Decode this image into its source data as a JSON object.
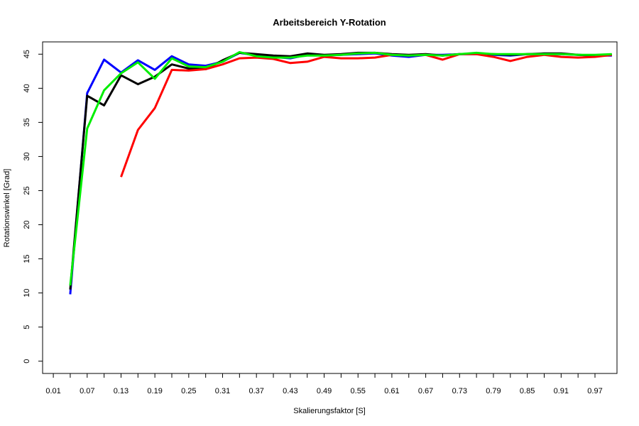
{
  "chart_data": {
    "type": "line",
    "title": "Arbeitsbereich Y-Rotation",
    "xlabel": "Skalierungsfaktor [S]",
    "ylabel": "Rotationswinkel [Grad]",
    "xlim": [
      -0.009,
      1.009
    ],
    "ylim": [
      -1.8,
      46.8
    ],
    "x_ticks": [
      0.01,
      0.04,
      0.07,
      0.1,
      0.13,
      0.16,
      0.19,
      0.22,
      0.25,
      0.28,
      0.31,
      0.34,
      0.37,
      0.4,
      0.43,
      0.46,
      0.49,
      0.52,
      0.55,
      0.58,
      0.61,
      0.64,
      0.67,
      0.7,
      0.73,
      0.76,
      0.79,
      0.82,
      0.85,
      0.88,
      0.91,
      0.94,
      0.97
    ],
    "x_tick_labels": [
      "0.01",
      "",
      "0.07",
      "",
      "0.13",
      "",
      "0.19",
      "",
      "0.25",
      "",
      "0.31",
      "",
      "0.37",
      "",
      "0.43",
      "",
      "0.49",
      "",
      "0.55",
      "",
      "0.61",
      "",
      "0.67",
      "",
      "0.73",
      "",
      "0.79",
      "",
      "0.85",
      "",
      "0.91",
      "",
      "0.97"
    ],
    "y_ticks": [
      0,
      5,
      10,
      15,
      20,
      25,
      30,
      35,
      40,
      45
    ],
    "y_tick_labels": [
      "0",
      "5",
      "10",
      "15",
      "20",
      "25",
      "30",
      "35",
      "40",
      "45"
    ],
    "grid": false,
    "series": [
      {
        "color": "#0000ff",
        "x": [
          0.04,
          0.07,
          0.1,
          0.13,
          0.16,
          0.19,
          0.22,
          0.25,
          0.28,
          0.31,
          0.34,
          0.37,
          0.4,
          0.43,
          0.46,
          0.49,
          0.52,
          0.55,
          0.58,
          0.61,
          0.64,
          0.67,
          0.7,
          0.73,
          0.76,
          0.79,
          0.82,
          0.85,
          0.88,
          0.91,
          0.94,
          0.97,
          1.0
        ],
        "y": [
          9.8,
          39.3,
          44.2,
          42.3,
          44.1,
          42.7,
          44.7,
          43.5,
          43.3,
          43.9,
          45.2,
          44.8,
          44.6,
          44.4,
          44.9,
          44.8,
          44.9,
          45.0,
          45.1,
          44.8,
          44.6,
          44.9,
          44.9,
          45.0,
          45.0,
          44.9,
          44.8,
          45.0,
          45.0,
          45.0,
          44.9,
          44.8,
          44.8
        ]
      },
      {
        "color": "#000000",
        "x": [
          0.04,
          0.07,
          0.1,
          0.13,
          0.16,
          0.19,
          0.22,
          0.25,
          0.28,
          0.31,
          0.34,
          0.37,
          0.4,
          0.43,
          0.46,
          0.49,
          0.52,
          0.55,
          0.58,
          0.61,
          0.64,
          0.67,
          0.7,
          0.73,
          0.76,
          0.79,
          0.82,
          0.85,
          0.88,
          0.91,
          0.94,
          0.97,
          1.0
        ],
        "y": [
          10.5,
          38.9,
          37.5,
          41.9,
          40.6,
          41.7,
          43.5,
          42.9,
          42.8,
          44.1,
          45.2,
          45.0,
          44.8,
          44.7,
          45.1,
          44.9,
          45.0,
          45.2,
          45.2,
          45.0,
          44.9,
          45.0,
          44.8,
          45.0,
          45.1,
          45.0,
          44.9,
          45.0,
          45.1,
          45.1,
          44.9,
          44.8,
          44.9
        ]
      },
      {
        "color": "#ff0000",
        "x": [
          0.13,
          0.16,
          0.19,
          0.22,
          0.25,
          0.28,
          0.31,
          0.34,
          0.37,
          0.4,
          0.43,
          0.46,
          0.49,
          0.52,
          0.55,
          0.58,
          0.61,
          0.64,
          0.67,
          0.7,
          0.73,
          0.76,
          0.79,
          0.82,
          0.85,
          0.88,
          0.91,
          0.94,
          0.97,
          1.0
        ],
        "y": [
          27.0,
          33.9,
          37.1,
          42.7,
          42.6,
          42.8,
          43.5,
          44.4,
          44.5,
          44.3,
          43.7,
          43.9,
          44.6,
          44.4,
          44.4,
          44.5,
          44.9,
          44.8,
          44.9,
          44.2,
          45.0,
          45.0,
          44.6,
          44.0,
          44.6,
          44.9,
          44.6,
          44.5,
          44.6,
          44.9
        ]
      },
      {
        "color": "#00ee00",
        "x": [
          0.04,
          0.07,
          0.1,
          0.13,
          0.16,
          0.19,
          0.22,
          0.25,
          0.28,
          0.31,
          0.34,
          0.37,
          0.4,
          0.43,
          0.46,
          0.49,
          0.52,
          0.55,
          0.58,
          0.61,
          0.64,
          0.67,
          0.7,
          0.73,
          0.76,
          0.79,
          0.82,
          0.85,
          0.88,
          0.91,
          0.94,
          0.97,
          1.0
        ],
        "y": [
          11.1,
          34.1,
          39.7,
          42.2,
          43.8,
          41.4,
          44.4,
          43.2,
          43.1,
          43.9,
          45.3,
          44.7,
          44.5,
          44.5,
          44.8,
          44.8,
          44.9,
          45.1,
          45.2,
          44.9,
          44.8,
          44.9,
          44.8,
          45.0,
          45.2,
          45.0,
          45.0,
          45.0,
          45.0,
          45.0,
          44.9,
          44.9,
          45.0
        ]
      }
    ]
  }
}
